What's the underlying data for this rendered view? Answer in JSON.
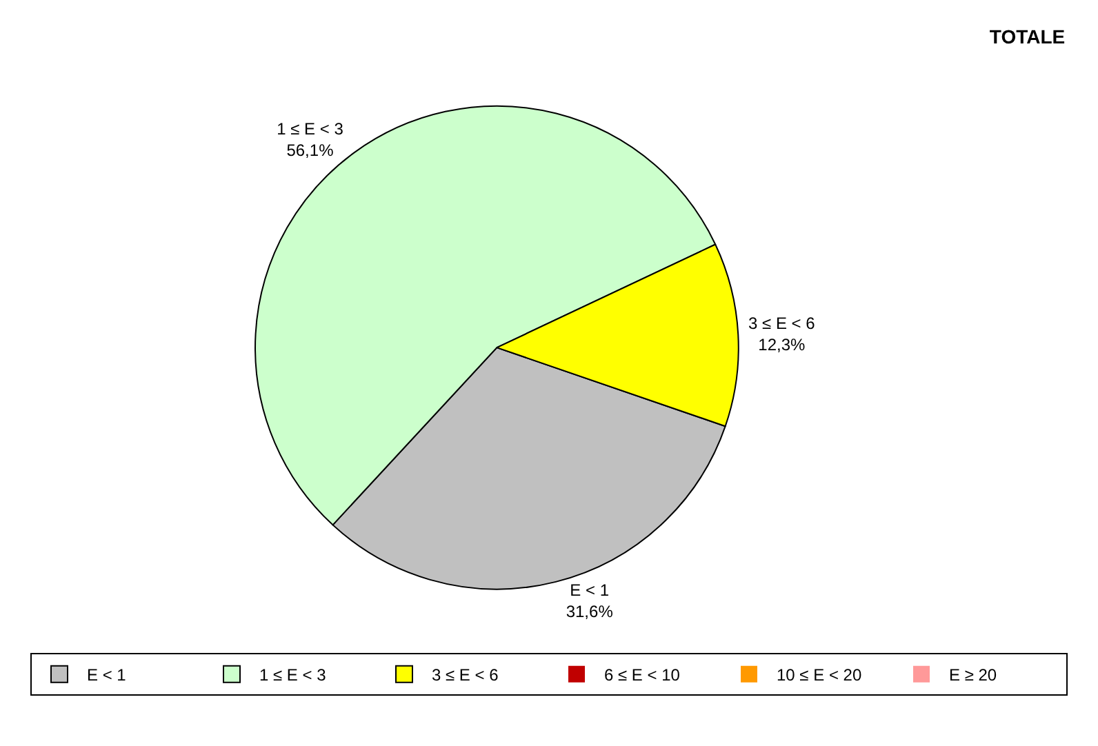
{
  "chart_data": {
    "type": "pie",
    "title": "TOTALE",
    "categories": [
      "E < 1",
      "1 ≤ E < 3",
      "3 ≤ E < 6",
      "6 ≤ E < 10",
      "10 ≤ E < 20",
      "E ≥ 20"
    ],
    "values": [
      31.6,
      56.1,
      12.3,
      0,
      0,
      0
    ],
    "colors": [
      "#c0c0c0",
      "#ccffcc",
      "#ffff00",
      "#c00000",
      "#ff9900",
      "#ff9999"
    ],
    "value_labels": [
      "31,6%",
      "56,1%",
      "12,3%",
      null,
      null,
      null
    ],
    "legend": "bottom"
  }
}
